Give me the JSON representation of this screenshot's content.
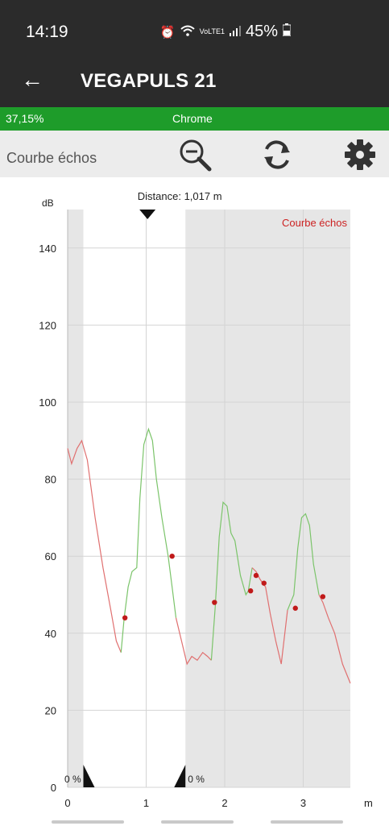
{
  "status_bar": {
    "time": "14:19",
    "network": "VoLTE1",
    "battery": "45%"
  },
  "app_bar": {
    "title": "VEGAPULS 21"
  },
  "progress_bar": {
    "value_text": "37,15%",
    "value": 0.3715,
    "browser": "Chrome",
    "color": "#1e9c2a"
  },
  "toolbar": {
    "label": "Courbe échos",
    "icons": [
      "zoom-out-icon",
      "refresh-icon",
      "settings-icon"
    ]
  },
  "chart_data": {
    "type": "line",
    "title": "Distance: 1,017 m",
    "xlabel": "m",
    "ylabel": "dB",
    "xlim": [
      0,
      3.6
    ],
    "ylim": [
      0,
      150
    ],
    "x_ticks": [
      0,
      1,
      2,
      3
    ],
    "y_ticks": [
      0,
      20,
      40,
      60,
      80,
      100,
      120,
      140
    ],
    "legend": "Courbe échos",
    "legend_position": "top-right",
    "legend_color": "#cc2222",
    "grid": true,
    "marker_distance": 1.017,
    "window": {
      "start": 0.2,
      "end": 1.5,
      "label_left": "0 %",
      "label_right": "0 %"
    },
    "series": [
      {
        "name": "Courbe échos",
        "color_low": "#e07070",
        "color_high": "#7bc46a",
        "x": [
          0,
          0.05,
          0.12,
          0.18,
          0.25,
          0.35,
          0.45,
          0.55,
          0.62,
          0.68,
          0.72,
          0.77,
          0.82,
          0.88,
          0.92,
          0.97,
          1.03,
          1.08,
          1.13,
          1.2,
          1.28,
          1.33,
          1.38,
          1.45,
          1.52,
          1.58,
          1.65,
          1.72,
          1.78,
          1.83,
          1.88,
          1.93,
          1.98,
          2.03,
          2.08,
          2.13,
          2.2,
          2.27,
          2.3,
          2.35,
          2.4,
          2.45,
          2.52,
          2.58,
          2.65,
          2.72,
          2.8,
          2.88,
          2.93,
          2.98,
          3.03,
          3.08,
          3.13,
          3.2,
          3.25,
          3.32,
          3.4,
          3.5,
          3.6
        ],
        "y": [
          88,
          84,
          88,
          90,
          85,
          70,
          57,
          46,
          38,
          35,
          44,
          52,
          56,
          57,
          75,
          89,
          93,
          90,
          80,
          70,
          60,
          52,
          44,
          38,
          32,
          34,
          33,
          35,
          34,
          33,
          47,
          65,
          74,
          73,
          66,
          64,
          55,
          50,
          51,
          57,
          56,
          54,
          52,
          45,
          38,
          32,
          46,
          50,
          62,
          70,
          71,
          68,
          58,
          50,
          48,
          44,
          40,
          32,
          27
        ],
        "points_x": [
          0.73,
          1.33,
          1.87,
          2.33,
          2.4,
          2.5,
          2.9,
          3.25
        ],
        "points_y": [
          44,
          60,
          48,
          51,
          55,
          53,
          46.5,
          49.5
        ]
      }
    ]
  }
}
